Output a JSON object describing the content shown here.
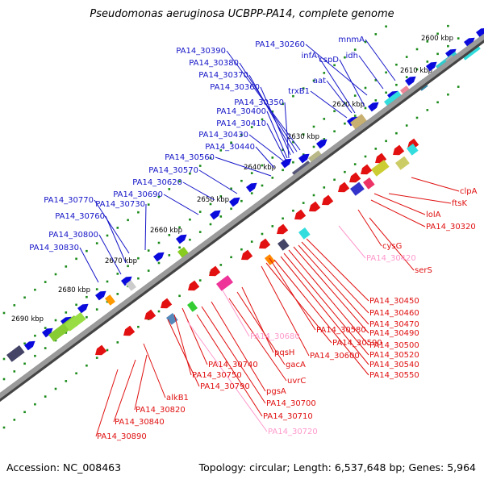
{
  "title": "Pseudomonas aeruginosa UCBPP-PA14, complete genome",
  "footer": {
    "accession": "Accession: NC_008463",
    "summary": "Topology: circular; Length: 6,537,648 bp; Genes: 5,964"
  },
  "colors": {
    "plus_strand_label": "#1515c8",
    "minus_strand_label": "#e01010",
    "rna_label": "#ff99cc",
    "backbone": "#777777",
    "tick": "#1a8a1a"
  },
  "scale_labels": [
    "2600 kbp",
    "2610 kbp",
    "2620 kbp",
    "2630 kbp",
    "2640 kbp",
    "2650 kbp",
    "2660 kbp",
    "2670 kbp",
    "2680 kbp",
    "2690 kbp"
  ],
  "top_labels": [
    "PA14_30260",
    "mnmA",
    "PA14_30390",
    "infA",
    "cspD",
    "idh",
    "PA14_30380",
    "PA14_30370",
    "aat",
    "PA14_30360",
    "trxB1",
    "PA14_30350",
    "PA14_30400",
    "PA14_30410",
    "PA14_30430",
    "PA14_30440",
    "PA14_30560",
    "PA14_30570",
    "PA14_30620",
    "PA14_30690",
    "PA14_30770",
    "PA14_30730",
    "PA14_30760",
    "PA14_30800",
    "PA14_30830"
  ],
  "bottom_labels": [
    "clpA",
    "ftsK",
    "lolA",
    "PA14_30320",
    "cysG",
    "PA14_30420",
    "serS",
    "PA14_30450",
    "PA14_30460",
    "PA14_30470",
    "PA14_30580",
    "PA14_30490",
    "PA14_30590",
    "PA14_30500",
    "PA14_30600",
    "PA14_30520",
    "PA14_30540",
    "PA14_30550",
    "PA14_30680",
    "pqsH",
    "gacA",
    "uvrC",
    "PA14_30740",
    "PA14_30750",
    "PA14_30790",
    "pgsA",
    "PA14_30700",
    "PA14_30710",
    "PA14_30720",
    "alkB1",
    "PA14_30820",
    "PA14_30840",
    "PA14_30890"
  ]
}
